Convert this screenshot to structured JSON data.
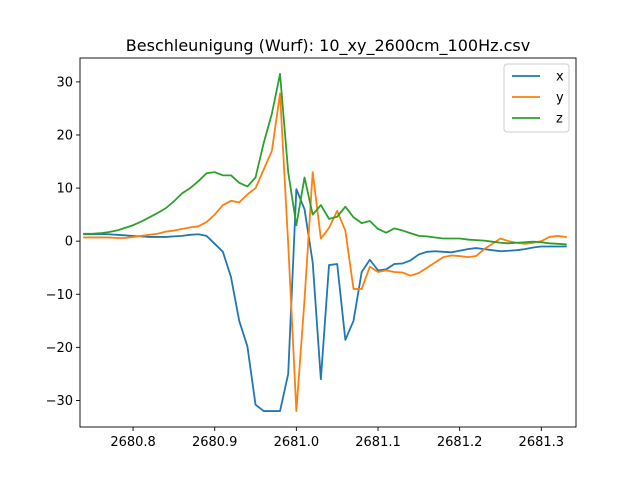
{
  "chart_data": {
    "type": "line",
    "title": "Beschleunigung (Wurf): 10_xy_2600cm_100Hz.csv",
    "xlabel": "",
    "ylabel": "",
    "xlim": [
      2680.735,
      2681.3425
    ],
    "ylim": [
      -35,
      34.5
    ],
    "xticks": [
      2680.8,
      2680.9,
      2681.0,
      2681.1,
      2681.2,
      2681.3
    ],
    "xtick_labels": [
      "2680.8",
      "2680.9",
      "2681.0",
      "2681.1",
      "2681.2",
      "2681.3"
    ],
    "yticks": [
      -30,
      -20,
      -10,
      0,
      10,
      20,
      30
    ],
    "ytick_labels": [
      "−30",
      "−20",
      "−10",
      "0",
      "10",
      "20",
      "30"
    ],
    "grid": false,
    "legend_position": "top-right",
    "x": [
      2680.74,
      2680.75,
      2680.76,
      2680.77,
      2680.78,
      2680.79,
      2680.8,
      2680.81,
      2680.82,
      2680.83,
      2680.84,
      2680.85,
      2680.86,
      2680.87,
      2680.88,
      2680.89,
      2680.9,
      2680.91,
      2680.92,
      2680.93,
      2680.94,
      2680.95,
      2680.96,
      2680.97,
      2680.98,
      2680.99,
      2681.0,
      2681.01,
      2681.02,
      2681.03,
      2681.04,
      2681.05,
      2681.06,
      2681.07,
      2681.08,
      2681.09,
      2681.1,
      2681.11,
      2681.12,
      2681.13,
      2681.14,
      2681.15,
      2681.16,
      2681.17,
      2681.18,
      2681.19,
      2681.2,
      2681.21,
      2681.22,
      2681.23,
      2681.24,
      2681.25,
      2681.26,
      2681.27,
      2681.28,
      2681.29,
      2681.3,
      2681.31,
      2681.32,
      2681.33
    ],
    "series": [
      {
        "name": "x",
        "color": "#1f77b4",
        "values": [
          1.3,
          1.3,
          1.3,
          1.3,
          1.2,
          1.1,
          1.0,
          0.9,
          0.8,
          0.8,
          0.8,
          0.9,
          1.0,
          1.2,
          1.3,
          1.0,
          -0.5,
          -2.0,
          -6.8,
          -15.0,
          -19.8,
          -30.8,
          -32.0,
          -32.0,
          -32.0,
          -25.0,
          9.8,
          6.0,
          -4.0,
          -26.0,
          -4.5,
          -4.3,
          -18.6,
          -15.0,
          -5.8,
          -3.5,
          -5.5,
          -5.3,
          -4.3,
          -4.2,
          -3.6,
          -2.5,
          -2.0,
          -1.9,
          -2.0,
          -2.1,
          -1.8,
          -1.5,
          -1.3,
          -1.5,
          -1.7,
          -1.9,
          -1.8,
          -1.7,
          -1.5,
          -1.2,
          -1.0,
          -1.0,
          -1.0,
          -1.0
        ]
      },
      {
        "name": "y",
        "color": "#ff7f0e",
        "values": [
          0.7,
          0.7,
          0.7,
          0.7,
          0.6,
          0.6,
          0.8,
          1.0,
          1.2,
          1.4,
          1.8,
          2.0,
          2.3,
          2.6,
          2.8,
          3.6,
          5.0,
          6.8,
          7.6,
          7.3,
          8.8,
          10.0,
          13.5,
          17.0,
          27.8,
          -0.5,
          -32.0,
          -11.0,
          13.0,
          0.5,
          2.5,
          5.7,
          2.0,
          -9.0,
          -9.0,
          -4.8,
          -5.8,
          -5.5,
          -5.8,
          -5.9,
          -6.5,
          -6.0,
          -5.0,
          -4.0,
          -3.0,
          -2.7,
          -2.8,
          -3.0,
          -2.8,
          -1.5,
          -0.5,
          0.5,
          0.0,
          -0.3,
          -0.5,
          -0.3,
          0.0,
          0.8,
          1.0,
          0.8
        ]
      },
      {
        "name": "z",
        "color": "#2ca02c",
        "values": [
          1.4,
          1.4,
          1.5,
          1.7,
          2.0,
          2.5,
          3.0,
          3.7,
          4.5,
          5.3,
          6.2,
          7.5,
          9.0,
          10.0,
          11.3,
          12.8,
          13.0,
          12.4,
          12.4,
          11.0,
          10.3,
          12.0,
          18.5,
          24.0,
          31.5,
          13.0,
          3.0,
          12.0,
          5.0,
          6.8,
          4.2,
          4.6,
          6.5,
          4.5,
          3.4,
          3.8,
          2.3,
          1.6,
          2.4,
          2.0,
          1.5,
          1.0,
          0.9,
          0.7,
          0.5,
          0.5,
          0.5,
          0.3,
          0.2,
          0.1,
          -0.1,
          -0.3,
          -0.4,
          -0.3,
          -0.2,
          -0.1,
          -0.2,
          -0.4,
          -0.5,
          -0.6
        ]
      }
    ]
  }
}
